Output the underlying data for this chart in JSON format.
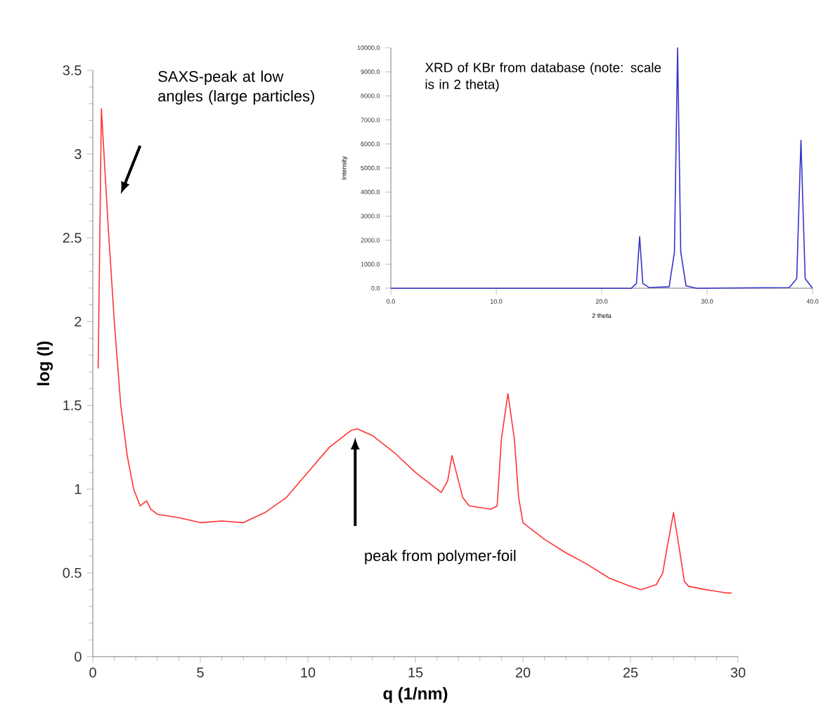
{
  "chart_data": [
    {
      "type": "line",
      "xlabel": "q (1/nm)",
      "ylabel": "log (I)",
      "xlim": [
        0,
        30
      ],
      "ylim": [
        0,
        3.5
      ],
      "xticks": [
        0,
        5,
        10,
        15,
        20,
        25,
        30
      ],
      "yticks": [
        0,
        0.5,
        1,
        1.5,
        2,
        2.5,
        3,
        3.5
      ],
      "annotations": [
        "SAXS-peak  at low angles (large particles)",
        "peak from polymer-foil"
      ],
      "series": [
        {
          "color": "#ff3333",
          "x": [
            0.25,
            0.4,
            0.7,
            1.0,
            1.3,
            1.6,
            1.9,
            2.2,
            2.5,
            2.7,
            3,
            4,
            5,
            6,
            7,
            8,
            9,
            10,
            11,
            12,
            12.3,
            13,
            14,
            15,
            16,
            16.2,
            16.5,
            16.7,
            16.9,
            17.2,
            17.5,
            18.5,
            18.8,
            19.0,
            19.3,
            19.6,
            19.8,
            20,
            21,
            22,
            23,
            24,
            25,
            25.5,
            26.2,
            26.5,
            26.7,
            27.0,
            27.3,
            27.5,
            27.7,
            28.5,
            29.5,
            29.7
          ],
          "values": [
            1.72,
            3.27,
            2.6,
            2.0,
            1.5,
            1.2,
            1.0,
            0.9,
            0.93,
            0.88,
            0.85,
            0.83,
            0.8,
            0.81,
            0.8,
            0.86,
            0.95,
            1.1,
            1.25,
            1.35,
            1.36,
            1.32,
            1.22,
            1.1,
            1.0,
            0.98,
            1.05,
            1.2,
            1.1,
            0.95,
            0.9,
            0.88,
            0.9,
            1.3,
            1.57,
            1.3,
            0.95,
            0.8,
            0.7,
            0.62,
            0.55,
            0.47,
            0.42,
            0.4,
            0.43,
            0.5,
            0.65,
            0.86,
            0.62,
            0.45,
            0.42,
            0.4,
            0.38,
            0.38
          ]
        }
      ]
    },
    {
      "type": "line",
      "xlabel": "2 theta",
      "ylabel": "Intensity",
      "xlim": [
        0,
        40
      ],
      "ylim": [
        0,
        10000
      ],
      "xticks": [
        {
          "value": 0,
          "label": "0.0"
        },
        {
          "value": 10,
          "label": "10.0"
        },
        {
          "value": 20,
          "label": "20.0"
        },
        {
          "value": 30,
          "label": "30.0"
        },
        {
          "value": 40,
          "label": "40.0"
        }
      ],
      "yticks": [
        {
          "value": 0,
          "label": "0.0"
        },
        {
          "value": 1000,
          "label": "1000.0"
        },
        {
          "value": 2000,
          "label": "2000.0"
        },
        {
          "value": 3000,
          "label": "3000.0"
        },
        {
          "value": 4000,
          "label": "4000.0"
        },
        {
          "value": 5000,
          "label": "5000.0"
        },
        {
          "value": 6000,
          "label": "6000.0"
        },
        {
          "value": 7000,
          "label": "7000.0"
        },
        {
          "value": 8000,
          "label": "8000.0"
        },
        {
          "value": 9000,
          "label": "9000.0"
        },
        {
          "value": 10000,
          "label": "10000.0"
        }
      ],
      "annotations": [
        "XRD of KBr from database (note: scale is in  2 theta)"
      ],
      "series": [
        {
          "color": "#3333cc",
          "x": [
            0,
            22.8,
            23.3,
            23.6,
            23.9,
            24.5,
            26.4,
            26.9,
            27.2,
            27.5,
            28,
            29,
            37.8,
            38.5,
            38.9,
            39.3,
            40
          ],
          "values": [
            0,
            0,
            200,
            2150,
            200,
            30,
            60,
            1500,
            10000,
            1500,
            100,
            0,
            30,
            400,
            6150,
            400,
            0
          ]
        }
      ]
    }
  ]
}
